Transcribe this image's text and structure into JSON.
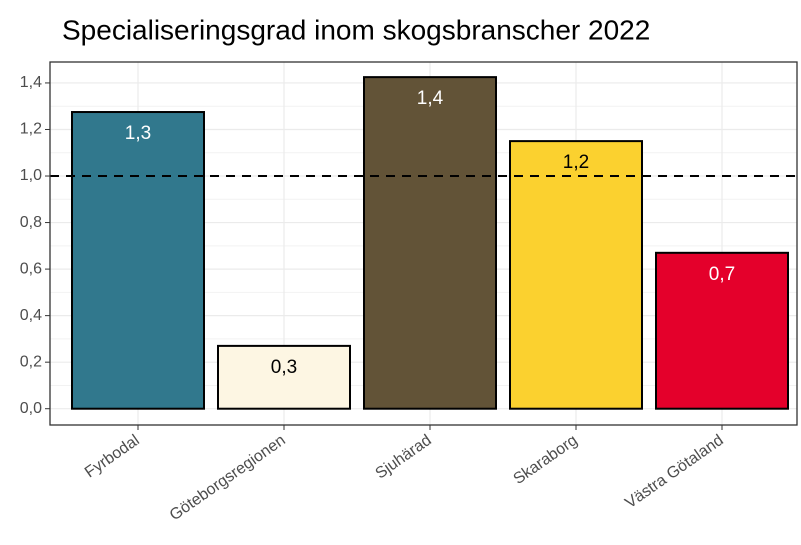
{
  "chart_data": {
    "type": "bar",
    "title": "Specialiseringsgrad inom skogsbranscher 2022",
    "categories": [
      "Fyrbodal",
      "Göteborgsregionen",
      "Sjuhärad",
      "Skaraborg",
      "Västra Götaland"
    ],
    "values": [
      1.275,
      0.27,
      1.425,
      1.15,
      0.67
    ],
    "value_labels": [
      "1,3",
      "0,3",
      "1,4",
      "1,2",
      "0,7"
    ],
    "colors": [
      "#31788d",
      "#fdf6e3",
      "#625337",
      "#fbd12f",
      "#e4002b"
    ],
    "reference_line": 1,
    "ylim": [
      -0.07,
      1.49
    ],
    "yticks": [
      {
        "value": 0,
        "label": "0,0"
      },
      {
        "value": 0.2,
        "label": "0,2"
      },
      {
        "value": 0.4,
        "label": "0,4"
      },
      {
        "value": 0.6,
        "label": "0,6"
      },
      {
        "value": 0.8,
        "label": "0,8"
      },
      {
        "value": 1,
        "label": "1,0"
      },
      {
        "value": 1.2,
        "label": "1,2"
      },
      {
        "value": 1.4,
        "label": "1,4"
      }
    ],
    "grid": true
  }
}
